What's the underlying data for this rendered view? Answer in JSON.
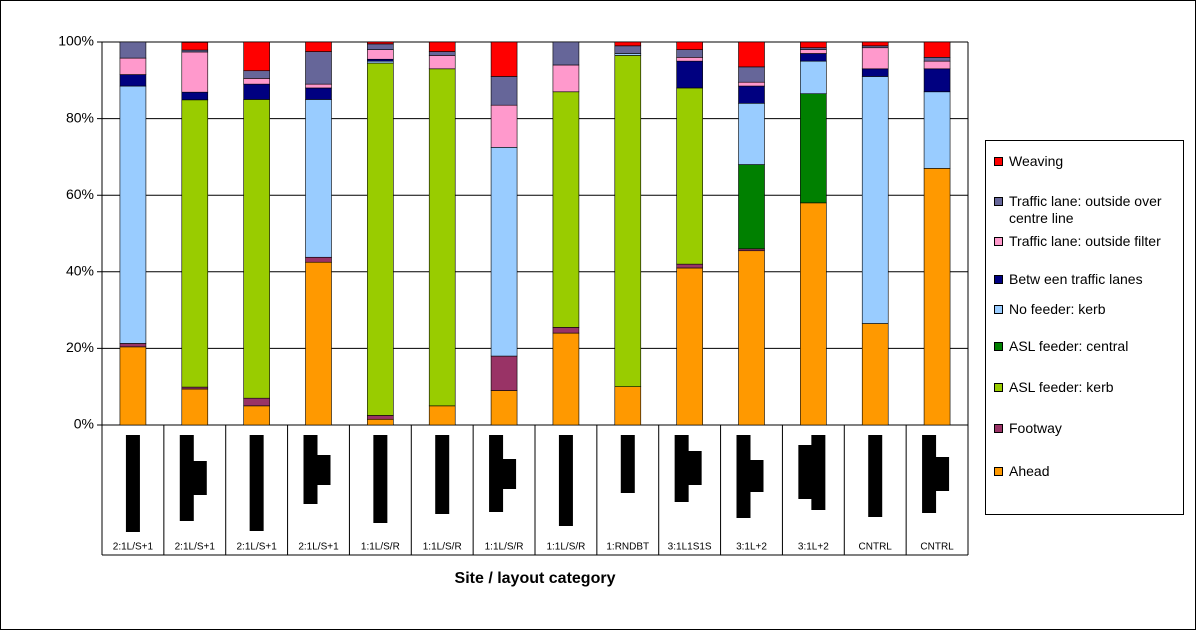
{
  "chart_data": {
    "type": "stacked_bar",
    "x_label": "Site / layout category",
    "categories": [
      "2:1L/S+1",
      "2:1L/S+1",
      "2:1L/S+1",
      "2:1L/S+1",
      "1:1L/S/R",
      "1:1L/S/R",
      "1:1L/S/R",
      "1:1L/S/R",
      "1:RNDBT",
      "3:1L1S1S",
      "3:1L+2",
      "3:1L+2",
      "CNTRL",
      "CNTRL"
    ],
    "ylim": [
      0,
      100
    ],
    "yticks": [
      {
        "value": 0,
        "label": "0%"
      },
      {
        "value": 20,
        "label": "20%"
      },
      {
        "value": 40,
        "label": "40%"
      },
      {
        "value": 60,
        "label": "60%"
      },
      {
        "value": 80,
        "label": "80%"
      },
      {
        "value": 100,
        "label": "100%"
      }
    ],
    "grid": true,
    "series": [
      {
        "name": "Ahead",
        "color": "#FF9900",
        "values": [
          20.4,
          9.4,
          5,
          42.5,
          1.5,
          5,
          9,
          24,
          10,
          41,
          45.5,
          58,
          26.5,
          67
        ]
      },
      {
        "name": "Footway",
        "color": "#993366",
        "values": [
          0.9,
          0.5,
          2,
          1.3,
          1,
          0,
          9,
          1.5,
          0,
          1,
          0.5,
          0,
          0,
          0
        ]
      },
      {
        "name": "ASL feeder: kerb",
        "color": "#99CC00",
        "values": [
          0,
          75,
          78,
          0,
          92,
          88,
          0,
          61.5,
          86.5,
          46,
          0,
          0,
          0,
          0
        ]
      },
      {
        "name": "ASL feeder: central",
        "color": "#008000",
        "values": [
          0,
          0,
          0,
          0,
          0,
          0,
          0,
          0,
          0,
          0,
          22,
          28.5,
          0,
          0
        ]
      },
      {
        "name": "No feeder: kerb",
        "color": "#99CCFF",
        "values": [
          67.2,
          0,
          0,
          41.2,
          0.5,
          0,
          54.5,
          0,
          0.5,
          0,
          16,
          8.5,
          64.5,
          20
        ]
      },
      {
        "name": "Betw een traffic lanes",
        "color": "#000080",
        "values": [
          3,
          2,
          4,
          3,
          0.5,
          0,
          0,
          0,
          0,
          7,
          4.5,
          2,
          2,
          6
        ]
      },
      {
        "name": "Traffic lane: outside filter",
        "color": "#FF99CC",
        "values": [
          4.3,
          10.5,
          1.5,
          1,
          2.5,
          3.5,
          11,
          7,
          0,
          1,
          1,
          1,
          5.5,
          2
        ]
      },
      {
        "name": "Traffic lane: outside over centre line",
        "color": "#666699",
        "values": [
          4.2,
          0.5,
          2,
          8.5,
          1.5,
          1,
          7.5,
          6,
          2,
          2,
          4,
          0.5,
          0.5,
          1
        ]
      },
      {
        "name": "Weaving",
        "color": "#FF0000",
        "values": [
          0,
          2,
          7.5,
          2.5,
          0.5,
          2.5,
          9,
          0,
          1,
          2,
          6.5,
          1.5,
          1,
          4
        ]
      }
    ]
  }
}
